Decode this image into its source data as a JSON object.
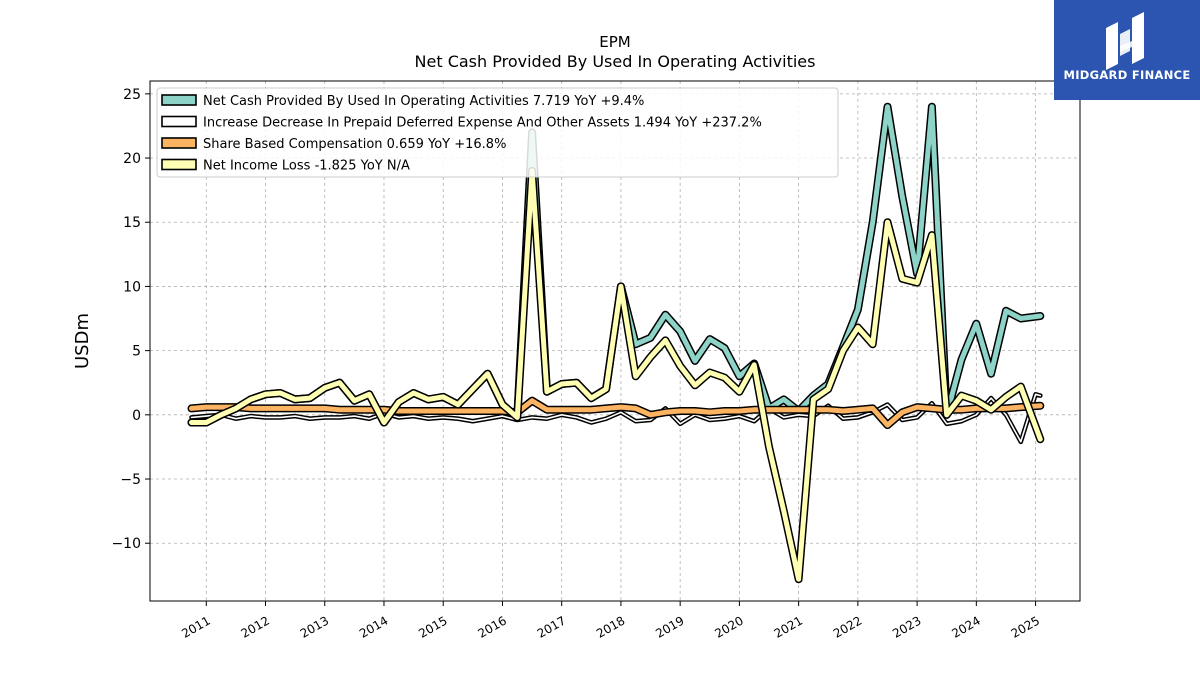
{
  "brand": {
    "name": "MIDGARD FINANCE",
    "bg_color": "#2b55b0",
    "icon": "midgard-logo-icon"
  },
  "chart_data": {
    "type": "line",
    "title": "EPM",
    "subtitle": "Net Cash Provided By Used In Operating Activities",
    "ylabel": "USDm",
    "xlabel": "",
    "ylim": [
      -14.5,
      26
    ],
    "xlim": [
      2010.05,
      2025.75
    ],
    "yticks": [
      25,
      20,
      15,
      10,
      5,
      0,
      -5,
      -10
    ],
    "ytick_labels": [
      "25",
      "20",
      "15",
      "10",
      "5",
      "0",
      "−5",
      "−10"
    ],
    "xticks": [
      "2011",
      "2012",
      "2013",
      "2014",
      "2015",
      "2016",
      "2017",
      "2018",
      "2019",
      "2020",
      "2021",
      "2022",
      "2023",
      "2024",
      "2025"
    ],
    "grid": true,
    "legend_position": "top-left",
    "series": [
      {
        "name": "Net Cash Provided By Used In Operating Activities  7.719 YoY +9.4%",
        "color": "#8dd3c7",
        "width": 5,
        "points": [
          [
            2010.75,
            -0.6
          ],
          [
            2011.0,
            -0.6
          ],
          [
            2011.25,
            0.0
          ],
          [
            2011.5,
            0.5
          ],
          [
            2011.75,
            1.2
          ],
          [
            2012.0,
            1.6
          ],
          [
            2012.25,
            1.7
          ],
          [
            2012.5,
            1.2
          ],
          [
            2012.75,
            1.3
          ],
          [
            2013.0,
            2.1
          ],
          [
            2013.25,
            2.5
          ],
          [
            2013.5,
            1.1
          ],
          [
            2013.75,
            1.6
          ],
          [
            2014.0,
            -0.6
          ],
          [
            2014.25,
            1.0
          ],
          [
            2014.5,
            1.7
          ],
          [
            2014.75,
            1.2
          ],
          [
            2015.0,
            1.4
          ],
          [
            2015.25,
            0.8
          ],
          [
            2015.5,
            2.0
          ],
          [
            2015.75,
            3.2
          ],
          [
            2016.0,
            0.8
          ],
          [
            2016.25,
            -0.2
          ],
          [
            2016.5,
            22.0
          ],
          [
            2016.75,
            1.8
          ],
          [
            2017.0,
            2.4
          ],
          [
            2017.25,
            2.5
          ],
          [
            2017.5,
            1.3
          ],
          [
            2017.75,
            2.0
          ],
          [
            2018.0,
            10.0
          ],
          [
            2018.25,
            5.5
          ],
          [
            2018.5,
            6.0
          ],
          [
            2018.75,
            7.8
          ],
          [
            2019.0,
            6.5
          ],
          [
            2019.25,
            4.2
          ],
          [
            2019.5,
            5.9
          ],
          [
            2019.75,
            5.2
          ],
          [
            2020.0,
            3.0
          ],
          [
            2020.25,
            4.0
          ],
          [
            2020.5,
            0.5
          ],
          [
            2020.75,
            1.2
          ],
          [
            2021.0,
            0.3
          ],
          [
            2021.25,
            1.5
          ],
          [
            2021.5,
            2.4
          ],
          [
            2021.75,
            5.3
          ],
          [
            2022.0,
            8.2
          ],
          [
            2022.25,
            15.0
          ],
          [
            2022.5,
            24.0
          ],
          [
            2022.75,
            17.0
          ],
          [
            2023.0,
            11.0
          ],
          [
            2023.25,
            24.0
          ],
          [
            2023.5,
            0.0
          ],
          [
            2023.75,
            4.3
          ],
          [
            2024.0,
            7.1
          ],
          [
            2024.25,
            3.2
          ],
          [
            2024.5,
            8.1
          ],
          [
            2024.75,
            7.5
          ],
          [
            2025.08,
            7.7
          ]
        ]
      },
      {
        "name": "Increase Decrease In Prepaid Deferred Expense And Other Assets  1.494 YoY +237.2%",
        "color": "#ffffff",
        "width": 1.6,
        "points": [
          [
            2010.75,
            -0.2
          ],
          [
            2011.0,
            -0.1
          ],
          [
            2011.25,
            0.0
          ],
          [
            2011.5,
            -0.3
          ],
          [
            2011.75,
            -0.1
          ],
          [
            2012.0,
            -0.2
          ],
          [
            2012.25,
            -0.2
          ],
          [
            2012.5,
            -0.1
          ],
          [
            2012.75,
            -0.3
          ],
          [
            2013.0,
            -0.2
          ],
          [
            2013.25,
            -0.2
          ],
          [
            2013.5,
            -0.1
          ],
          [
            2013.75,
            -0.3
          ],
          [
            2014.0,
            0.1
          ],
          [
            2014.25,
            -0.2
          ],
          [
            2014.5,
            -0.1
          ],
          [
            2014.75,
            -0.3
          ],
          [
            2015.0,
            -0.2
          ],
          [
            2015.25,
            -0.3
          ],
          [
            2015.5,
            -0.5
          ],
          [
            2015.75,
            -0.3
          ],
          [
            2016.0,
            -0.1
          ],
          [
            2016.25,
            -0.4
          ],
          [
            2016.5,
            -0.2
          ],
          [
            2016.75,
            -0.3
          ],
          [
            2017.0,
            0.0
          ],
          [
            2017.25,
            -0.2
          ],
          [
            2017.5,
            -0.6
          ],
          [
            2017.75,
            -0.3
          ],
          [
            2018.0,
            0.2
          ],
          [
            2018.25,
            -0.5
          ],
          [
            2018.5,
            -0.4
          ],
          [
            2018.75,
            0.5
          ],
          [
            2019.0,
            -0.7
          ],
          [
            2019.25,
            0.0
          ],
          [
            2019.5,
            -0.4
          ],
          [
            2019.75,
            -0.3
          ],
          [
            2020.0,
            -0.1
          ],
          [
            2020.25,
            -0.5
          ],
          [
            2020.5,
            0.5
          ],
          [
            2020.75,
            -0.2
          ],
          [
            2021.0,
            0.0
          ],
          [
            2021.25,
            -0.1
          ],
          [
            2021.5,
            0.7
          ],
          [
            2021.75,
            -0.3
          ],
          [
            2022.0,
            -0.2
          ],
          [
            2022.25,
            0.2
          ],
          [
            2022.5,
            0.8
          ],
          [
            2022.75,
            -0.4
          ],
          [
            2023.0,
            -0.2
          ],
          [
            2023.25,
            0.9
          ],
          [
            2023.5,
            -0.7
          ],
          [
            2023.75,
            -0.5
          ],
          [
            2024.0,
            0.0
          ],
          [
            2024.25,
            1.3
          ],
          [
            2024.5,
            0.0
          ],
          [
            2024.75,
            -2.1
          ],
          [
            2025.0,
            1.6
          ],
          [
            2025.08,
            1.5
          ]
        ]
      },
      {
        "name": "Share Based Compensation  0.659 YoY +16.8%",
        "color": "#fdb462",
        "width": 5,
        "points": [
          [
            2010.75,
            0.5
          ],
          [
            2011.0,
            0.6
          ],
          [
            2011.25,
            0.6
          ],
          [
            2011.5,
            0.6
          ],
          [
            2011.75,
            0.5
          ],
          [
            2012.0,
            0.5
          ],
          [
            2012.25,
            0.5
          ],
          [
            2012.5,
            0.5
          ],
          [
            2012.75,
            0.5
          ],
          [
            2013.0,
            0.5
          ],
          [
            2013.25,
            0.4
          ],
          [
            2013.5,
            0.4
          ],
          [
            2013.75,
            0.4
          ],
          [
            2014.0,
            0.4
          ],
          [
            2014.25,
            0.3
          ],
          [
            2014.5,
            0.3
          ],
          [
            2014.75,
            0.3
          ],
          [
            2015.0,
            0.3
          ],
          [
            2015.25,
            0.3
          ],
          [
            2015.5,
            0.3
          ],
          [
            2015.75,
            0.3
          ],
          [
            2016.0,
            0.3
          ],
          [
            2016.25,
            0.2
          ],
          [
            2016.5,
            1.1
          ],
          [
            2016.75,
            0.4
          ],
          [
            2017.0,
            0.4
          ],
          [
            2017.25,
            0.4
          ],
          [
            2017.5,
            0.4
          ],
          [
            2017.75,
            0.5
          ],
          [
            2018.0,
            0.6
          ],
          [
            2018.25,
            0.5
          ],
          [
            2018.5,
            0.0
          ],
          [
            2018.75,
            0.2
          ],
          [
            2019.0,
            0.3
          ],
          [
            2019.25,
            0.3
          ],
          [
            2019.5,
            0.2
          ],
          [
            2019.75,
            0.3
          ],
          [
            2020.0,
            0.3
          ],
          [
            2020.25,
            0.4
          ],
          [
            2020.5,
            0.4
          ],
          [
            2020.75,
            0.4
          ],
          [
            2021.0,
            0.4
          ],
          [
            2021.25,
            0.4
          ],
          [
            2021.5,
            0.4
          ],
          [
            2021.75,
            0.3
          ],
          [
            2022.0,
            0.4
          ],
          [
            2022.25,
            0.5
          ],
          [
            2022.5,
            -0.8
          ],
          [
            2022.75,
            0.2
          ],
          [
            2023.0,
            0.6
          ],
          [
            2023.25,
            0.5
          ],
          [
            2023.5,
            0.4
          ],
          [
            2023.75,
            0.4
          ],
          [
            2024.0,
            0.5
          ],
          [
            2024.25,
            0.5
          ],
          [
            2024.5,
            0.5
          ],
          [
            2024.75,
            0.6
          ],
          [
            2025.08,
            0.7
          ]
        ]
      },
      {
        "name": "Net Income Loss  -1.825 YoY N/A",
        "color": "#ffffb3",
        "width": 5,
        "points": [
          [
            2010.75,
            -0.6
          ],
          [
            2011.0,
            -0.6
          ],
          [
            2011.25,
            0.0
          ],
          [
            2011.5,
            0.5
          ],
          [
            2011.75,
            1.2
          ],
          [
            2012.0,
            1.6
          ],
          [
            2012.25,
            1.7
          ],
          [
            2012.5,
            1.2
          ],
          [
            2012.75,
            1.3
          ],
          [
            2013.0,
            2.1
          ],
          [
            2013.25,
            2.5
          ],
          [
            2013.5,
            1.1
          ],
          [
            2013.75,
            1.6
          ],
          [
            2014.0,
            -0.6
          ],
          [
            2014.25,
            1.0
          ],
          [
            2014.5,
            1.7
          ],
          [
            2014.75,
            1.2
          ],
          [
            2015.0,
            1.4
          ],
          [
            2015.25,
            0.8
          ],
          [
            2015.5,
            2.0
          ],
          [
            2015.75,
            3.2
          ],
          [
            2016.0,
            0.8
          ],
          [
            2016.25,
            -0.2
          ],
          [
            2016.5,
            19.0
          ],
          [
            2016.75,
            1.8
          ],
          [
            2017.0,
            2.4
          ],
          [
            2017.25,
            2.5
          ],
          [
            2017.5,
            1.3
          ],
          [
            2017.75,
            2.0
          ],
          [
            2018.0,
            10.0
          ],
          [
            2018.25,
            3.0
          ],
          [
            2018.5,
            4.5
          ],
          [
            2018.75,
            5.8
          ],
          [
            2019.0,
            3.8
          ],
          [
            2019.25,
            2.3
          ],
          [
            2019.5,
            3.3
          ],
          [
            2019.75,
            2.9
          ],
          [
            2020.0,
            1.8
          ],
          [
            2020.25,
            3.9
          ],
          [
            2020.5,
            -2.5
          ],
          [
            2020.75,
            -7.5
          ],
          [
            2021.0,
            -12.8
          ],
          [
            2021.25,
            1.2
          ],
          [
            2021.5,
            2.0
          ],
          [
            2021.75,
            5.0
          ],
          [
            2022.0,
            6.8
          ],
          [
            2022.25,
            5.5
          ],
          [
            2022.5,
            15.0
          ],
          [
            2022.75,
            10.6
          ],
          [
            2023.0,
            10.3
          ],
          [
            2023.25,
            14.0
          ],
          [
            2023.5,
            0.0
          ],
          [
            2023.75,
            1.5
          ],
          [
            2024.0,
            1.1
          ],
          [
            2024.25,
            0.4
          ],
          [
            2024.5,
            1.4
          ],
          [
            2024.75,
            2.2
          ],
          [
            2025.08,
            -1.9
          ]
        ]
      }
    ]
  }
}
